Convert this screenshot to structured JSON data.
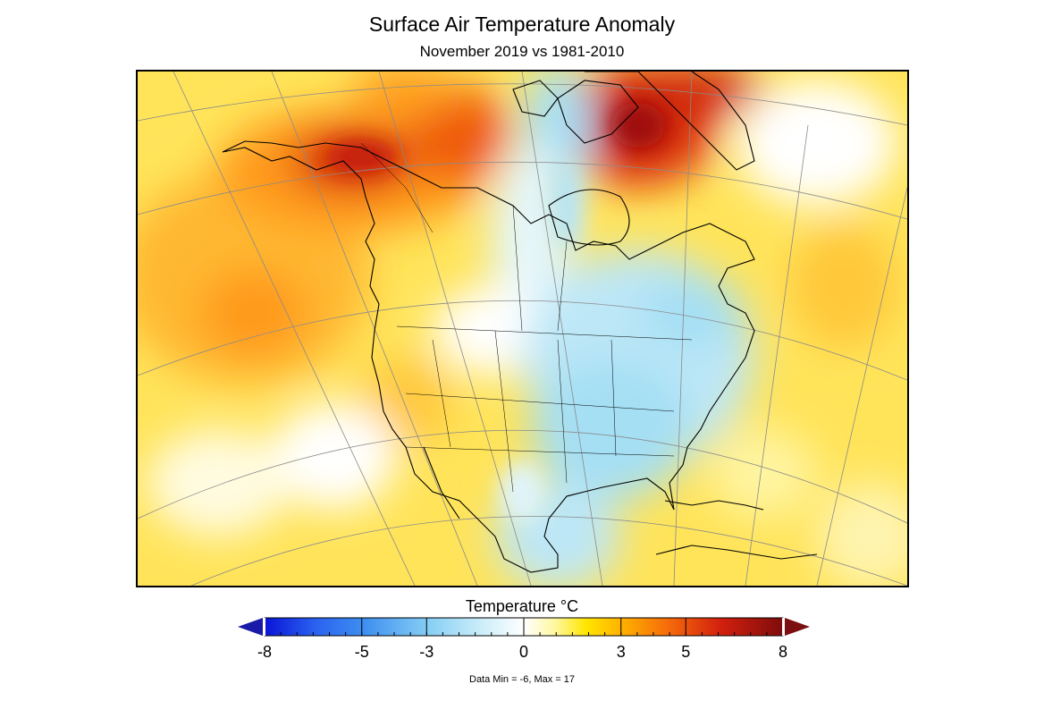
{
  "title": "Surface Air Temperature Anomaly",
  "subtitle": "November 2019 vs 1981-2010",
  "colorbar": {
    "title": "Temperature °C",
    "tick_labels": [
      "-8",
      "-5",
      "-3",
      "0",
      "3",
      "5",
      "8"
    ],
    "tick_values": [
      -8,
      -5,
      -3,
      0,
      3,
      5,
      8
    ],
    "range": [
      -8,
      8
    ],
    "colors": {
      "min_arrow": "#1a1aa8",
      "max_arrow": "#7a1010",
      "stops": [
        "#0a14d8",
        "#2b63f0",
        "#52a8f0",
        "#9ad8f5",
        "#e6f8ff",
        "#ffffff",
        "#fff9a0",
        "#ffd400",
        "#ffa300",
        "#f25a0a",
        "#c81414",
        "#820c0c"
      ]
    }
  },
  "footnote": "Data Min = -6, Max = 17",
  "map": {
    "region": "North America",
    "colors": {
      "cold": "#9ddcf2",
      "cool": "#d9f3fb",
      "neutral": "#ffffff",
      "warm": "#ffe24a",
      "warmer": "#ffb524",
      "hot": "#e6560e",
      "hottest": "#b40f0f"
    }
  }
}
